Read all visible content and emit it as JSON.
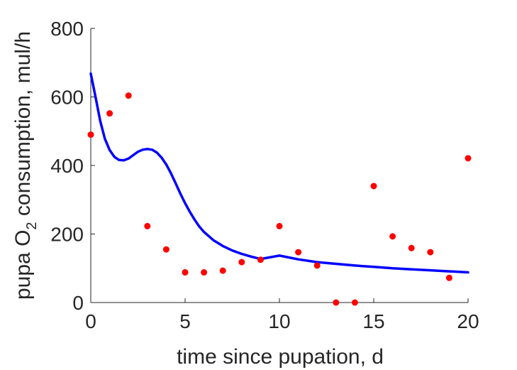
{
  "chart_data": {
    "type": "scatter",
    "title": "",
    "xlabel": "time since pupation, d",
    "ylabel": {
      "prefix": "pupa O",
      "subscript": "2",
      "suffix": " consumption, mul/h"
    },
    "xlim": [
      0,
      20
    ],
    "ylim": [
      0,
      800
    ],
    "xticks": [
      0,
      5,
      10,
      15,
      20
    ],
    "yticks": [
      0,
      200,
      400,
      600,
      800
    ],
    "grid": false,
    "legend": "none",
    "series": [
      {
        "kind": "scatter",
        "color": "#ff0000",
        "x": [
          0,
          1,
          2,
          3,
          4,
          5,
          6,
          7,
          8,
          9,
          10,
          11,
          12,
          13,
          14,
          15,
          16,
          17,
          18,
          19,
          20
        ],
        "y": [
          490,
          552,
          604,
          223,
          155,
          88,
          88,
          93,
          118,
          125,
          223,
          147,
          108,
          0,
          0,
          340,
          193,
          159,
          147,
          72,
          421
        ]
      },
      {
        "kind": "line",
        "color": "#0000ff",
        "x": [
          0,
          0.25,
          0.5,
          0.75,
          1,
          1.25,
          1.5,
          1.75,
          2,
          2.25,
          2.5,
          2.75,
          3,
          3.25,
          3.5,
          3.75,
          4,
          4.25,
          4.5,
          4.75,
          5,
          5.25,
          5.5,
          5.75,
          6,
          6.5,
          7,
          7.5,
          8,
          8.5,
          9,
          10,
          11,
          12,
          13,
          14,
          15,
          16,
          17,
          18,
          19,
          20
        ],
        "y": [
          668,
          600,
          530,
          478,
          445,
          425,
          416,
          415,
          420,
          430,
          440,
          446,
          448,
          446,
          438,
          423,
          403,
          377,
          348,
          318,
          290,
          265,
          242,
          222,
          206,
          182,
          165,
          152,
          142,
          134,
          127,
          137,
          126,
          118,
          113,
          108,
          104,
          100,
          97,
          94,
          91,
          88
        ]
      }
    ]
  }
}
